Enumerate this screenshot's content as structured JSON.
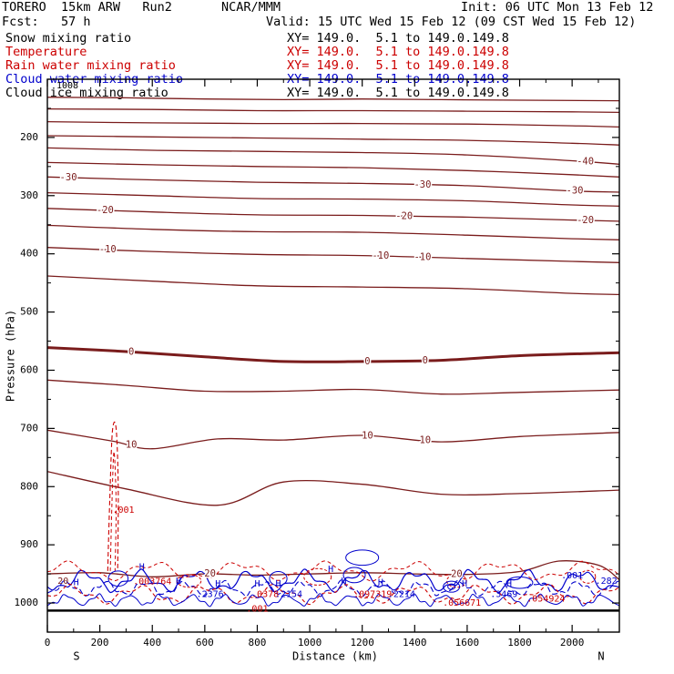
{
  "header": {
    "model": "TORERO  15km ARW   Run2",
    "org": "NCAR/MMM",
    "init": "Init: 06 UTC Mon 13 Feb 12",
    "fcst": "Fcst:   57 h",
    "valid": "Valid: 15 UTC Wed 15 Feb 12 (09 CST Wed 15 Feb 12)",
    "fields": [
      {
        "name": "Snow mixing ratio",
        "xy": "XY= 149.0.  5.1 to 149.0.149.8",
        "color": "#000000"
      },
      {
        "name": "Temperature",
        "xy": "XY= 149.0.  5.1 to 149.0.149.8",
        "color": "#cc0000"
      },
      {
        "name": "Rain water mixing ratio",
        "xy": "XY= 149.0.  5.1 to 149.0.149.8",
        "color": "#cc0000"
      },
      {
        "name": "Cloud water mixing ratio",
        "xy": "XY= 149.0.  5.1 to 149.0.149.8",
        "color": "#0000cc"
      },
      {
        "name": "Cloud ice mixing ratio",
        "xy": "XY= 149.0.  5.1 to 149.0.149.8",
        "color": "#000000"
      }
    ]
  },
  "chart_data": {
    "type": "contour-cross-section",
    "xlabel": "Distance (km)",
    "ylabel": "Pressure (hPa)",
    "xlim": [
      0,
      2180
    ],
    "ylim": [
      1050,
      100
    ],
    "x_ticks": [
      0,
      200,
      400,
      600,
      800,
      1000,
      1200,
      1400,
      1600,
      1800,
      2000
    ],
    "y_ticks": [
      200,
      300,
      400,
      500,
      600,
      700,
      800,
      900,
      1000
    ],
    "endpoint_left": "S",
    "endpoint_right": "N",
    "top_label": "1008",
    "temperature_color": "#7a1c1c",
    "rain_color": "#cc0000",
    "cloud_color": "#0000cc",
    "temperature_contours": [
      {
        "level": -60,
        "label": "",
        "points": [
          [
            0,
            131
          ],
          [
            300,
            132
          ],
          [
            600,
            134
          ],
          [
            900,
            135
          ],
          [
            1200,
            134
          ],
          [
            1500,
            135
          ],
          [
            1800,
            136
          ],
          [
            2180,
            137
          ]
        ]
      },
      {
        "level": -55,
        "label": "",
        "points": [
          [
            0,
            151
          ],
          [
            400,
            152
          ],
          [
            800,
            154
          ],
          [
            1200,
            154
          ],
          [
            1600,
            155
          ],
          [
            2000,
            156
          ],
          [
            2180,
            157
          ]
        ]
      },
      {
        "level": -50,
        "label": "",
        "points": [
          [
            0,
            173
          ],
          [
            400,
            175
          ],
          [
            800,
            176
          ],
          [
            1200,
            176
          ],
          [
            1600,
            177
          ],
          [
            2000,
            180
          ],
          [
            2180,
            182
          ]
        ]
      },
      {
        "level": -45,
        "label": "",
        "points": [
          [
            0,
            197
          ],
          [
            400,
            199
          ],
          [
            800,
            201
          ],
          [
            1200,
            203
          ],
          [
            1600,
            205
          ],
          [
            2000,
            210
          ],
          [
            2180,
            213
          ]
        ]
      },
      {
        "level": -40,
        "label": "-40",
        "labels_at": [
          2050
        ],
        "points": [
          [
            0,
            218
          ],
          [
            400,
            222
          ],
          [
            800,
            224
          ],
          [
            1200,
            226
          ],
          [
            1600,
            230
          ],
          [
            2000,
            240
          ],
          [
            2180,
            246
          ]
        ]
      },
      {
        "level": -35,
        "label": "",
        "points": [
          [
            0,
            243
          ],
          [
            400,
            247
          ],
          [
            800,
            250
          ],
          [
            1200,
            252
          ],
          [
            1600,
            257
          ],
          [
            2000,
            264
          ],
          [
            2180,
            268
          ]
        ]
      },
      {
        "level": -30,
        "label": "-30",
        "labels_at": [
          80,
          1430,
          2010
        ],
        "points": [
          [
            0,
            268
          ],
          [
            400,
            273
          ],
          [
            800,
            277
          ],
          [
            1200,
            279
          ],
          [
            1600,
            283
          ],
          [
            2000,
            292
          ],
          [
            2180,
            294
          ]
        ]
      },
      {
        "level": -25,
        "label": "",
        "points": [
          [
            0,
            295
          ],
          [
            400,
            300
          ],
          [
            800,
            305
          ],
          [
            1200,
            306
          ],
          [
            1600,
            309
          ],
          [
            2000,
            316
          ],
          [
            2180,
            318
          ]
        ]
      },
      {
        "level": -20,
        "label": "-20",
        "labels_at": [
          220,
          1360,
          2050
        ],
        "points": [
          [
            0,
            322
          ],
          [
            400,
            328
          ],
          [
            800,
            333
          ],
          [
            1200,
            334
          ],
          [
            1600,
            337
          ],
          [
            2000,
            342
          ],
          [
            2180,
            344
          ]
        ]
      },
      {
        "level": -15,
        "label": "",
        "points": [
          [
            0,
            351
          ],
          [
            400,
            358
          ],
          [
            800,
            362
          ],
          [
            1200,
            363
          ],
          [
            1600,
            368
          ],
          [
            2000,
            374
          ],
          [
            2180,
            376
          ]
        ]
      },
      {
        "level": -10,
        "label": "-10",
        "labels_at": [
          230,
          1270,
          1430
        ],
        "points": [
          [
            0,
            389
          ],
          [
            400,
            396
          ],
          [
            800,
            401
          ],
          [
            1200,
            403
          ],
          [
            1600,
            408
          ],
          [
            2000,
            413
          ],
          [
            2180,
            415
          ]
        ]
      },
      {
        "level": -5,
        "label": "",
        "points": [
          [
            0,
            438
          ],
          [
            400,
            447
          ],
          [
            800,
            455
          ],
          [
            1200,
            457
          ],
          [
            1600,
            460
          ],
          [
            2000,
            468
          ],
          [
            2180,
            470
          ]
        ]
      },
      {
        "level": 0,
        "label": "0",
        "bold": true,
        "labels_at": [
          320,
          1220,
          1440
        ],
        "points": [
          [
            0,
            561
          ],
          [
            300,
            568
          ],
          [
            600,
            577
          ],
          [
            900,
            585
          ],
          [
            1200,
            585
          ],
          [
            1500,
            583
          ],
          [
            1800,
            575
          ],
          [
            2180,
            570
          ]
        ]
      },
      {
        "level": 5,
        "label": "",
        "points": [
          [
            0,
            617
          ],
          [
            300,
            626
          ],
          [
            600,
            636
          ],
          [
            900,
            636
          ],
          [
            1200,
            633
          ],
          [
            1500,
            641
          ],
          [
            1800,
            638
          ],
          [
            2180,
            634
          ]
        ]
      },
      {
        "level": 10,
        "label": "10",
        "labels_at": [
          320,
          1220,
          1440
        ],
        "points": [
          [
            0,
            703
          ],
          [
            250,
            722
          ],
          [
            400,
            735
          ],
          [
            650,
            718
          ],
          [
            900,
            720
          ],
          [
            1200,
            712
          ],
          [
            1500,
            723
          ],
          [
            1800,
            714
          ],
          [
            2180,
            707
          ]
        ]
      },
      {
        "level": 15,
        "label": "",
        "points": [
          [
            0,
            774
          ],
          [
            300,
            804
          ],
          [
            650,
            832
          ],
          [
            900,
            792
          ],
          [
            1200,
            796
          ],
          [
            1500,
            813
          ],
          [
            1800,
            812
          ],
          [
            2180,
            806
          ]
        ]
      },
      {
        "level": 20,
        "label": "20",
        "labels_at": [
          620,
          1560
        ],
        "points": [
          [
            0,
            950
          ],
          [
            200,
            948
          ],
          [
            400,
            955
          ],
          [
            600,
            950
          ],
          [
            800,
            952
          ],
          [
            1000,
            950
          ],
          [
            1200,
            948
          ],
          [
            1400,
            950
          ],
          [
            1600,
            951
          ],
          [
            1800,
            946
          ],
          [
            1950,
            928
          ],
          [
            2100,
            935
          ],
          [
            2180,
            960
          ]
        ]
      }
    ],
    "temperature_labels": [
      "-40",
      "-30",
      "-20",
      "-10",
      "0",
      "10",
      "20"
    ],
    "rain_labels": [
      ".001",
      ".003764",
      ".0378",
      ".097319",
      ".056671",
      ".054924"
    ],
    "cloud_labels": [
      ".2376",
      ".2154",
      ".2214",
      ".3469",
      ".282",
      ".001",
      ".001"
    ],
    "high_marker": "H",
    "surface_pressure": 1013
  }
}
